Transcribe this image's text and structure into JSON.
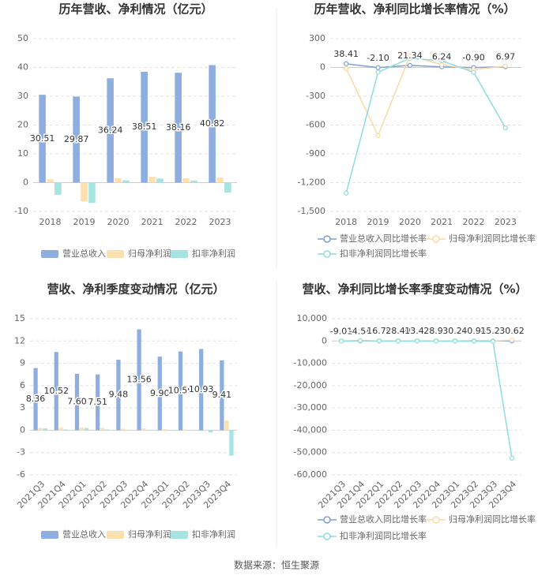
{
  "chart_data": [
    {
      "type": "bar",
      "title": "历年营收、净利情况（亿元）",
      "categories": [
        "2018",
        "2019",
        "2020",
        "2021",
        "2022",
        "2023"
      ],
      "series": [
        {
          "name": "营业总收入",
          "color": "#8eaee0",
          "values": [
            30.51,
            29.87,
            36.24,
            38.51,
            38.16,
            40.82
          ],
          "value_labels": [
            "30.51",
            "29.87",
            "36.24",
            "38.51",
            "38.16",
            "40.82"
          ]
        },
        {
          "name": "归母净利润",
          "color": "#fde0b0",
          "values": [
            1.2,
            -6.5,
            1.5,
            2.0,
            1.5,
            1.7
          ]
        },
        {
          "name": "扣非净利润",
          "color": "#a6e3e3",
          "values": [
            -4.2,
            -7.0,
            0.8,
            1.4,
            0.7,
            -3.5
          ]
        }
      ],
      "ylim": [
        -10,
        50
      ],
      "yticks": [
        -10,
        0,
        10,
        20,
        30,
        40,
        50
      ],
      "grid": true
    },
    {
      "type": "line",
      "title": "历年营收、净利同比增长率情况（%）",
      "categories": [
        "2018",
        "2019",
        "2020",
        "2021",
        "2022",
        "2023"
      ],
      "series": [
        {
          "name": "营业总收入同比增长率",
          "color": "#7fa0d4",
          "values": [
            38.41,
            -2.1,
            21.34,
            6.24,
            -0.9,
            6.97
          ],
          "value_labels": [
            "38.41",
            "-2.10",
            "21.34",
            "6.24",
            "-0.90",
            "6.97"
          ]
        },
        {
          "name": "归母净利润同比增长率",
          "color": "#fcd9a4",
          "values": [
            -10,
            -710,
            120,
            30,
            -25,
            15
          ]
        },
        {
          "name": "扣非净利润同比增长率",
          "color": "#8fdcdc",
          "values": [
            -1310,
            -50,
            95,
            70,
            -50,
            -630
          ]
        }
      ],
      "ylim": [
        -1500,
        300
      ],
      "yticks": [
        {
          "value": -1500,
          "label": "-1,500"
        },
        {
          "value": -1200,
          "label": "-1,200"
        },
        -900,
        -600,
        -300,
        0,
        300
      ],
      "grid": true
    },
    {
      "type": "bar",
      "title": "营收、净利季度变动情况（亿元）",
      "categories": [
        "2021Q3",
        "2021Q4",
        "2022Q1",
        "2022Q2",
        "2022Q3",
        "2022Q4",
        "2023Q1",
        "2023Q2",
        "2023Q3",
        "2023Q4"
      ],
      "series": [
        {
          "name": "营业总收入",
          "color": "#8eaee0",
          "values": [
            8.36,
            10.52,
            7.6,
            7.51,
            9.48,
            13.56,
            9.9,
            10.59,
            10.93,
            9.41
          ],
          "value_labels": [
            "8.36",
            "10.52",
            "7.60",
            "7.51",
            "9.48",
            "13.56",
            "9.90",
            "10.59",
            "10.93",
            "9.41"
          ]
        },
        {
          "name": "归母净利润",
          "color": "#fde0b0",
          "values": [
            0.3,
            0.35,
            0.35,
            0.3,
            0.2,
            0.25,
            0.15,
            0.1,
            0.05,
            1.3
          ]
        },
        {
          "name": "扣非净利润",
          "color": "#a6e3e3",
          "values": [
            0.25,
            0.1,
            0.3,
            0.1,
            0.05,
            0.05,
            0.05,
            -0.05,
            -0.3,
            -3.4
          ]
        }
      ],
      "ylim": [
        -6,
        15
      ],
      "yticks": [
        -6,
        -3,
        0,
        3,
        6,
        9,
        12,
        15
      ],
      "grid": true
    },
    {
      "type": "line",
      "title": "营收、净利同比增长率季度变动情况（%）",
      "categories": [
        "2021Q3",
        "2021Q4",
        "2022Q1",
        "2022Q2",
        "2022Q3",
        "2022Q4",
        "2023Q1",
        "2023Q2",
        "2023Q3",
        "2023Q4"
      ],
      "series": [
        {
          "name": "营业总收入同比增长率",
          "color": "#7fa0d4",
          "values": [
            -9.01,
            -4.58,
            16.76,
            28.4,
            13.42,
            28.93,
            30.2,
            40.94,
            15.2,
            30.62
          ],
          "value_labels": [
            "-9.01",
            "-4.58",
            "16.76",
            "28.40",
            "13.42",
            "28.93",
            "30.20",
            "40.94",
            "15.20",
            "30.62"
          ]
        },
        {
          "name": "归母净利润同比增长率",
          "color": "#fcd9a4",
          "values": [
            -50,
            150,
            -80,
            -30,
            -60,
            -20,
            -40,
            -70,
            -30,
            400
          ]
        },
        {
          "name": "扣非净利润同比增长率",
          "color": "#8fdcdc",
          "values": [
            -100,
            200,
            -50,
            -80,
            -40,
            -60,
            -70,
            -90,
            -200,
            -52500
          ]
        }
      ],
      "ylim": [
        -60000,
        10000
      ],
      "yticks": [
        {
          "value": -60000,
          "label": "-60,000"
        },
        {
          "value": -50000,
          "label": "-50,000"
        },
        {
          "value": -40000,
          "label": "-40,000"
        },
        {
          "value": -30000,
          "label": "-30,000"
        },
        {
          "value": -20000,
          "label": "-20,000"
        },
        {
          "value": -10000,
          "label": "-10,000"
        },
        0,
        {
          "value": 10000,
          "label": "10,000"
        }
      ],
      "grid": true
    }
  ],
  "source": "数据来源：恒生聚源"
}
